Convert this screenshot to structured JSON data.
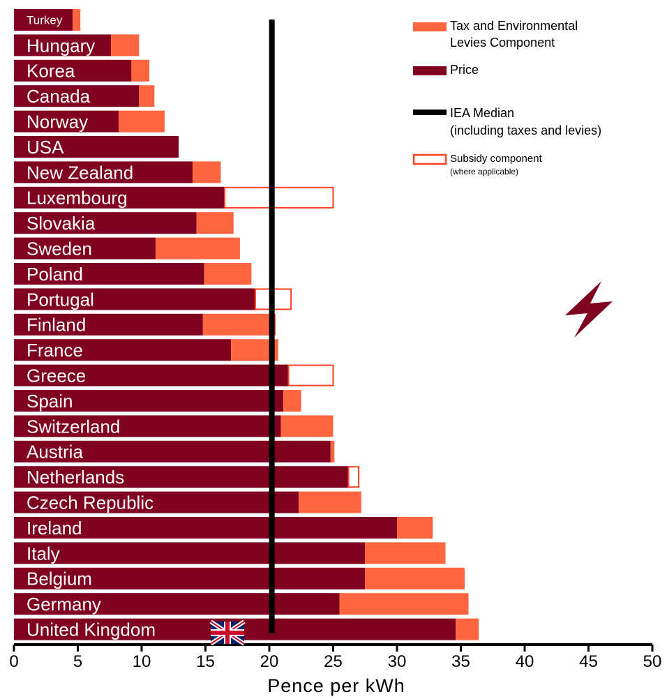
{
  "chart_data": {
    "type": "bar",
    "orientation": "horizontal",
    "stacked": true,
    "xlabel": "Pence per kWh",
    "xlim": [
      0,
      50
    ],
    "xticks": [
      0,
      5,
      10,
      15,
      20,
      25,
      30,
      35,
      40,
      45,
      50
    ],
    "reference_line": {
      "label": "IEA Median",
      "sublabel": "(including taxes and levies)",
      "value": 20.2
    },
    "legend": {
      "tax_label": "Tax and Environmental",
      "tax_label_2": "Levies Component",
      "price_label": "Price",
      "median_label": "IEA Median",
      "median_sublabel": "(including taxes and levies)",
      "subsidy_label": "Subsidy component",
      "subsidy_sublabel": "(where applicable)",
      "placement": "top-right"
    },
    "colors": {
      "price": "#800020",
      "tax": "#ff6640",
      "subsidy_outline": "#ff4020",
      "median": "#000000",
      "axis": "#000000"
    },
    "categories": [
      "Turkey",
      "Hungary",
      "Korea",
      "Canada",
      "Norway",
      "USA",
      "New Zealand",
      "Luxembourg",
      "Slovakia",
      "Sweden",
      "Poland",
      "Portugal",
      "Finland",
      "France",
      "Greece",
      "Spain",
      "Switzerland",
      "Austria",
      "Netherlands",
      "Czech Republic",
      "Ireland",
      "Italy",
      "Belgium",
      "Germany",
      "United Kingdom"
    ],
    "series": [
      {
        "name": "Price",
        "values": [
          4.6,
          7.6,
          9.2,
          9.8,
          8.2,
          12.9,
          14.0,
          16.5,
          14.3,
          11.1,
          14.9,
          18.9,
          14.8,
          17.0,
          21.5,
          21.1,
          20.9,
          24.8,
          26.2,
          22.3,
          30.0,
          27.5,
          27.5,
          25.5,
          34.6
        ]
      },
      {
        "name": "Tax and Environmental Levies Component",
        "values": [
          0.6,
          2.2,
          1.4,
          1.2,
          3.6,
          0,
          2.2,
          0,
          2.9,
          6.6,
          3.7,
          0,
          5.7,
          3.7,
          0,
          1.4,
          4.1,
          0.3,
          0,
          4.9,
          2.8,
          6.3,
          7.8,
          10.1,
          1.8
        ]
      },
      {
        "name": "Subsidy component",
        "values": [
          0,
          0,
          0,
          0,
          0,
          0,
          0,
          8.5,
          0,
          0,
          0,
          2.8,
          0,
          0,
          3.5,
          0,
          0,
          0,
          0.8,
          0,
          0,
          0,
          0,
          0,
          0
        ]
      }
    ],
    "flag_icon": "uk-flag-icon",
    "lightning_icon": "lightning-bolt-icon",
    "grid": false
  }
}
